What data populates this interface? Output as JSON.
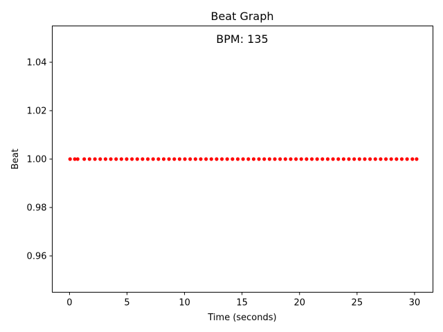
{
  "chart_data": {
    "type": "scatter",
    "title": "Beat Graph",
    "annotation": "BPM: 135",
    "xlabel": "Time (seconds)",
    "ylabel": "Beat",
    "xlim": [
      -1.5,
      31.6
    ],
    "ylim": [
      0.945,
      1.055
    ],
    "x_ticks": [
      0,
      5,
      10,
      15,
      20,
      25,
      30
    ],
    "y_ticks": [
      0.96,
      0.98,
      1.0,
      1.02,
      1.04
    ],
    "x_tick_labels": [
      "0",
      "5",
      "10",
      "15",
      "20",
      "25",
      "30"
    ],
    "y_tick_labels": [
      "0.96",
      "0.98",
      "1.00",
      "1.02",
      "1.04"
    ],
    "grid": false,
    "marker_color": "#ff0000",
    "series": [
      {
        "x": [
          0.05,
          0.46,
          0.71,
          1.28,
          1.74,
          2.21,
          2.67,
          3.13,
          3.59,
          4.05,
          4.51,
          4.97,
          5.43,
          5.89,
          6.35,
          6.81,
          7.27,
          7.73,
          8.19,
          8.65,
          9.11,
          9.57,
          10.03,
          10.49,
          10.95,
          11.41,
          11.87,
          12.33,
          12.79,
          13.25,
          13.71,
          14.17,
          14.63,
          15.09,
          15.55,
          16.01,
          16.47,
          16.93,
          17.39,
          17.85,
          18.31,
          18.77,
          19.23,
          19.69,
          20.15,
          20.61,
          21.07,
          21.53,
          21.99,
          22.45,
          22.91,
          23.37,
          23.83,
          24.29,
          24.75,
          25.21,
          25.67,
          26.13,
          26.59,
          27.05,
          27.51,
          27.97,
          28.43,
          28.89,
          29.35,
          29.81,
          30.18
        ],
        "y": [
          1,
          1,
          1,
          1,
          1,
          1,
          1,
          1,
          1,
          1,
          1,
          1,
          1,
          1,
          1,
          1,
          1,
          1,
          1,
          1,
          1,
          1,
          1,
          1,
          1,
          1,
          1,
          1,
          1,
          1,
          1,
          1,
          1,
          1,
          1,
          1,
          1,
          1,
          1,
          1,
          1,
          1,
          1,
          1,
          1,
          1,
          1,
          1,
          1,
          1,
          1,
          1,
          1,
          1,
          1,
          1,
          1,
          1,
          1,
          1,
          1,
          1,
          1,
          1,
          1,
          1,
          1
        ]
      }
    ]
  }
}
